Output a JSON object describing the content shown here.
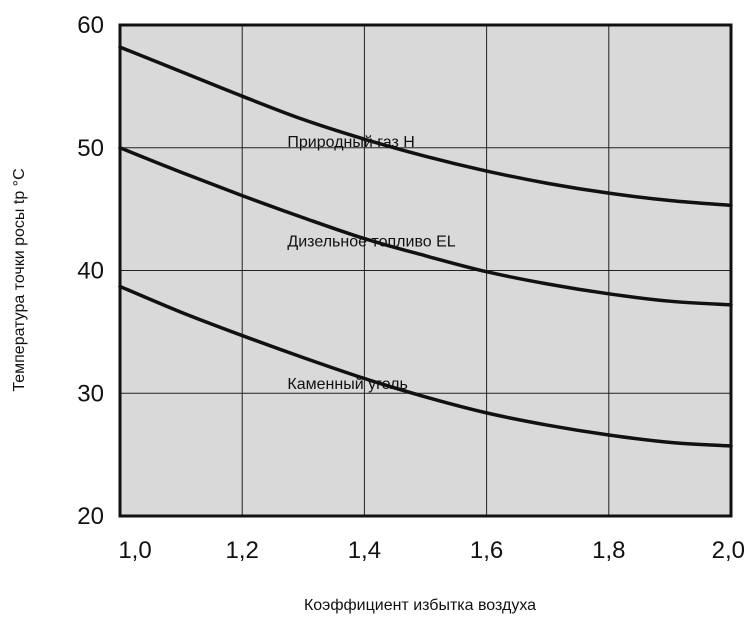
{
  "chart_data": {
    "type": "line",
    "title": "",
    "xlabel": "Коэффициент избытка воздуха",
    "ylabel": "Температура точки росы tp °C",
    "xlim": [
      1.0,
      2.0
    ],
    "ylim": [
      20,
      60
    ],
    "x_ticks": [
      1.0,
      1.2,
      1.4,
      1.6,
      1.8,
      2.0
    ],
    "x_tick_labels": [
      "1,0",
      "1,2",
      "1,4",
      "1,6",
      "1,8",
      "2,0"
    ],
    "y_ticks": [
      20,
      30,
      40,
      50,
      60
    ],
    "y_tick_labels": [
      "20",
      "30",
      "40",
      "50",
      "60"
    ],
    "grid": true,
    "background_color": "#d9d9d9",
    "line_color": "#111111",
    "x": [
      1.0,
      1.1,
      1.2,
      1.3,
      1.4,
      1.5,
      1.6,
      1.7,
      1.8,
      1.9,
      2.0
    ],
    "series": [
      {
        "name": "Природный газ Н",
        "values": [
          58.2,
          56.2,
          54.2,
          52.3,
          50.7,
          49.3,
          48.1,
          47.1,
          46.3,
          45.7,
          45.3
        ]
      },
      {
        "name": "Дизельное топливо EL",
        "values": [
          50.0,
          48.0,
          46.1,
          44.3,
          42.6,
          41.2,
          39.9,
          38.9,
          38.1,
          37.5,
          37.2
        ]
      },
      {
        "name": "Каменный уголь",
        "values": [
          38.7,
          36.6,
          34.7,
          32.9,
          31.2,
          29.7,
          28.4,
          27.4,
          26.6,
          26.0,
          25.7
        ]
      }
    ]
  }
}
